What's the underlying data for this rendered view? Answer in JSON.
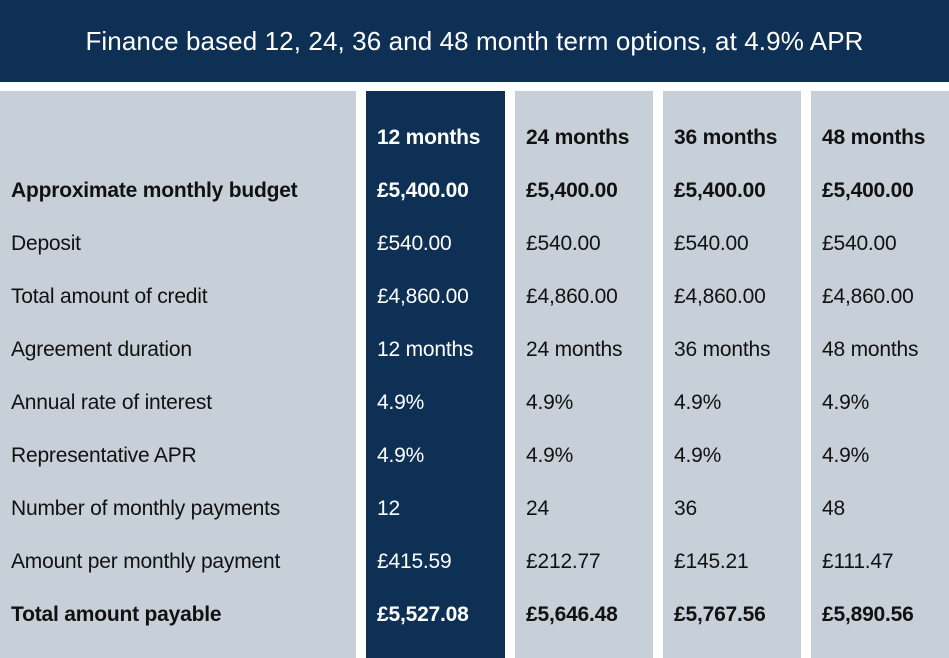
{
  "header": {
    "title": "Finance based 12, 24, 36 and 48 month term options, at 4.9% APR"
  },
  "colors": {
    "navy": "#0d3054",
    "grey": "#c7d0d9",
    "text": "#111111"
  },
  "table": {
    "columns": [
      "12 months",
      "24 months",
      "36 months",
      "48 months"
    ],
    "row_labels": [
      "Approximate monthly budget",
      "Deposit",
      "Total amount of credit",
      "Agreement duration",
      "Annual rate of interest",
      "Representative APR",
      "Number of monthly payments",
      "Amount per monthly payment",
      "Total amount payable"
    ],
    "rows": [
      [
        "£5,400.00",
        "£5,400.00",
        "£5,400.00",
        "£5,400.00"
      ],
      [
        "£540.00",
        "£540.00",
        "£540.00",
        "£540.00"
      ],
      [
        "£4,860.00",
        "£4,860.00",
        "£4,860.00",
        "£4,860.00"
      ],
      [
        "12 months",
        "24 months",
        "36 months",
        "48 months"
      ],
      [
        "4.9%",
        "4.9%",
        "4.9%",
        "4.9%"
      ],
      [
        "4.9%",
        "4.9%",
        "4.9%",
        "4.9%"
      ],
      [
        "12",
        "24",
        "36",
        "48"
      ],
      [
        "£415.59",
        "£212.77",
        "£145.21",
        "£111.47"
      ],
      [
        "£5,527.08",
        "£5,646.48",
        "£5,767.56",
        "£5,890.56"
      ]
    ],
    "highlighted_column": "12 months"
  }
}
